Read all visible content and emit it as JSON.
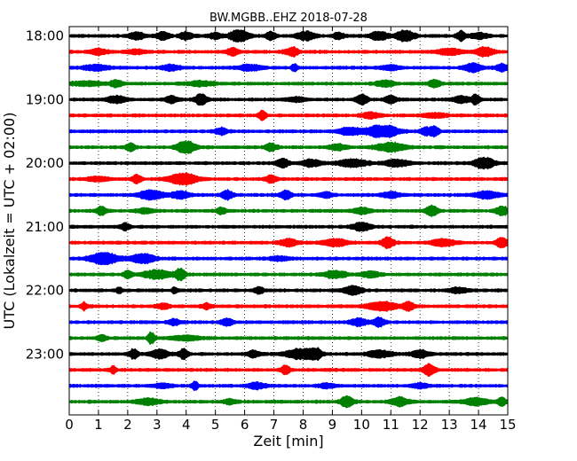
{
  "chart_data": {
    "type": "line",
    "title": "BW.MGBB..EHZ 2018-07-28",
    "xlabel": "Zeit  [min]",
    "ylabel": "UTC (Lokalzeit = UTC + 02:00)",
    "xlim": [
      0,
      15
    ],
    "x_ticks": [
      "0",
      "1",
      "2",
      "3",
      "4",
      "5",
      "6",
      "7",
      "8",
      "9",
      "10",
      "11",
      "12",
      "13",
      "14",
      "15"
    ],
    "y_tick_labels": [
      "18:00",
      "19:00",
      "20:00",
      "21:00",
      "22:00",
      "23:00"
    ],
    "grid": "vertical dotted",
    "trace_minutes": 15,
    "trace_colors": [
      "#000000",
      "#ff0000",
      "#0000ff",
      "#008000"
    ],
    "series": [
      {
        "start": "18:00",
        "bursts": [
          [
            2.3,
            0.25,
            0.5
          ],
          [
            3.2,
            0.2,
            0.6
          ],
          [
            4.0,
            0.25,
            0.5
          ],
          [
            5.0,
            0.2,
            0.4
          ],
          [
            5.8,
            0.3,
            1.0
          ],
          [
            6.9,
            0.2,
            0.5
          ],
          [
            8.1,
            0.3,
            0.6
          ],
          [
            9.2,
            0.2,
            0.4
          ],
          [
            10.6,
            0.3,
            0.6
          ],
          [
            11.5,
            0.3,
            0.8
          ],
          [
            13.4,
            0.15,
            0.7
          ],
          [
            14.0,
            0.3,
            0.4
          ]
        ]
      },
      {
        "start": "18:15",
        "bursts": [
          [
            1.0,
            0.3,
            0.4
          ],
          [
            2.3,
            0.3,
            0.3
          ],
          [
            5.6,
            0.2,
            0.5
          ],
          [
            7.5,
            0.2,
            0.3
          ],
          [
            7.7,
            0.15,
            0.5
          ],
          [
            13.0,
            0.4,
            0.4
          ],
          [
            14.2,
            0.3,
            0.6
          ]
        ]
      },
      {
        "start": "18:30",
        "bursts": [
          [
            0.9,
            0.4,
            0.4
          ],
          [
            3.5,
            0.3,
            0.4
          ],
          [
            6.2,
            0.4,
            0.4
          ],
          [
            7.7,
            0.1,
            0.5
          ],
          [
            11.0,
            0.3,
            0.3
          ],
          [
            13.8,
            0.3,
            0.6
          ],
          [
            14.8,
            0.2,
            0.5
          ]
        ]
      },
      {
        "start": "18:45",
        "bursts": [
          [
            0.6,
            0.5,
            0.3
          ],
          [
            1.6,
            0.2,
            0.5
          ],
          [
            4.5,
            0.5,
            0.3
          ],
          [
            10.8,
            0.3,
            0.4
          ],
          [
            12.5,
            0.2,
            0.5
          ]
        ]
      },
      {
        "start": "19:00",
        "bursts": [
          [
            1.6,
            0.3,
            0.5
          ],
          [
            3.5,
            0.2,
            0.5
          ],
          [
            4.5,
            0.2,
            0.8
          ],
          [
            7.8,
            0.3,
            0.3
          ],
          [
            10.0,
            0.2,
            0.7
          ],
          [
            11.0,
            0.2,
            0.5
          ],
          [
            13.4,
            0.25,
            0.5
          ],
          [
            13.9,
            0.15,
            0.7
          ]
        ]
      },
      {
        "start": "19:15",
        "bursts": [
          [
            6.6,
            0.12,
            0.8
          ],
          [
            10.3,
            0.3,
            0.4
          ],
          [
            12.5,
            0.4,
            0.3
          ]
        ]
      },
      {
        "start": "19:30",
        "bursts": [
          [
            5.2,
            0.2,
            0.5
          ],
          [
            9.6,
            0.4,
            0.5
          ],
          [
            10.7,
            0.5,
            1.0
          ],
          [
            12.2,
            0.2,
            0.5
          ],
          [
            12.5,
            0.15,
            0.7
          ]
        ]
      },
      {
        "start": "19:45",
        "bursts": [
          [
            2.1,
            0.15,
            0.6
          ],
          [
            4.0,
            0.3,
            1.0
          ],
          [
            6.9,
            0.2,
            0.5
          ],
          [
            9.2,
            0.3,
            0.4
          ],
          [
            11.0,
            0.5,
            0.6
          ]
        ]
      },
      {
        "start": "20:00",
        "bursts": [
          [
            7.3,
            0.2,
            0.6
          ],
          [
            8.3,
            0.3,
            0.5
          ],
          [
            9.7,
            0.5,
            0.5
          ],
          [
            11.2,
            0.4,
            0.5
          ],
          [
            14.2,
            0.3,
            1.0
          ]
        ]
      },
      {
        "start": "20:15",
        "bursts": [
          [
            1.0,
            0.4,
            0.3
          ],
          [
            2.3,
            0.15,
            0.6
          ],
          [
            3.9,
            0.45,
            0.9
          ],
          [
            6.9,
            0.2,
            0.5
          ]
        ]
      },
      {
        "start": "20:30",
        "bursts": [
          [
            2.8,
            0.4,
            0.7
          ],
          [
            3.8,
            0.3,
            0.5
          ],
          [
            5.4,
            0.2,
            0.6
          ],
          [
            7.4,
            0.2,
            0.6
          ],
          [
            8.8,
            0.2,
            0.4
          ],
          [
            11.0,
            0.3,
            0.4
          ],
          [
            14.3,
            0.4,
            0.5
          ]
        ]
      },
      {
        "start": "20:45",
        "bursts": [
          [
            1.1,
            0.15,
            0.6
          ],
          [
            2.6,
            0.3,
            0.3
          ],
          [
            5.2,
            0.15,
            0.5
          ],
          [
            10.0,
            0.3,
            0.4
          ],
          [
            12.4,
            0.2,
            0.7
          ],
          [
            14.8,
            0.2,
            0.7
          ]
        ]
      },
      {
        "start": "21:00",
        "bursts": [
          [
            1.9,
            0.15,
            0.5
          ],
          [
            10.0,
            0.3,
            0.6
          ]
        ]
      },
      {
        "start": "21:15",
        "bursts": [
          [
            7.5,
            0.3,
            0.5
          ],
          [
            9.1,
            0.4,
            0.5
          ],
          [
            10.9,
            0.2,
            0.8
          ],
          [
            12.8,
            0.4,
            0.5
          ],
          [
            14.8,
            0.2,
            0.7
          ]
        ]
      },
      {
        "start": "21:30",
        "bursts": [
          [
            1.2,
            0.5,
            0.8
          ],
          [
            2.5,
            0.4,
            0.7
          ],
          [
            7.2,
            0.3,
            0.3
          ]
        ]
      },
      {
        "start": "21:45",
        "bursts": [
          [
            2.0,
            0.15,
            0.5
          ],
          [
            3.0,
            0.5,
            0.6
          ],
          [
            3.8,
            0.15,
            0.9
          ],
          [
            9.1,
            0.4,
            0.5
          ],
          [
            10.3,
            0.3,
            0.4
          ]
        ]
      },
      {
        "start": "22:00",
        "bursts": [
          [
            1.7,
            0.1,
            0.4
          ],
          [
            3.6,
            0.1,
            0.4
          ],
          [
            6.5,
            0.15,
            0.5
          ],
          [
            9.7,
            0.3,
            0.6
          ],
          [
            13.3,
            0.3,
            0.4
          ]
        ]
      },
      {
        "start": "22:15",
        "bursts": [
          [
            0.5,
            0.1,
            0.5
          ],
          [
            3.2,
            0.2,
            0.4
          ],
          [
            4.7,
            0.15,
            0.4
          ],
          [
            10.7,
            0.5,
            0.6
          ],
          [
            11.6,
            0.2,
            0.6
          ]
        ]
      },
      {
        "start": "22:30",
        "bursts": [
          [
            3.6,
            0.2,
            0.4
          ],
          [
            5.4,
            0.2,
            0.5
          ],
          [
            9.9,
            0.3,
            0.5
          ],
          [
            10.6,
            0.2,
            0.6
          ]
        ]
      },
      {
        "start": "22:45",
        "bursts": [
          [
            1.1,
            0.15,
            0.5
          ],
          [
            2.8,
            0.12,
            0.8
          ],
          [
            4.0,
            0.5,
            0.3
          ]
        ]
      },
      {
        "start": "23:00",
        "bursts": [
          [
            2.2,
            0.15,
            0.7
          ],
          [
            3.1,
            0.3,
            0.6
          ],
          [
            3.9,
            0.15,
            0.7
          ],
          [
            6.3,
            0.2,
            0.5
          ],
          [
            7.9,
            0.5,
            0.7
          ],
          [
            8.4,
            0.2,
            0.9
          ],
          [
            10.6,
            0.4,
            0.5
          ],
          [
            12.0,
            0.3,
            0.5
          ]
        ]
      },
      {
        "start": "23:15",
        "bursts": [
          [
            1.5,
            0.1,
            0.5
          ],
          [
            7.4,
            0.15,
            0.6
          ],
          [
            12.3,
            0.2,
            0.8
          ]
        ]
      },
      {
        "start": "23:30",
        "bursts": [
          [
            3.2,
            0.3,
            0.3
          ],
          [
            4.3,
            0.1,
            0.6
          ],
          [
            6.4,
            0.3,
            0.4
          ],
          [
            8.8,
            0.3,
            0.3
          ],
          [
            12.0,
            0.3,
            0.3
          ]
        ]
      },
      {
        "start": "23:45",
        "bursts": [
          [
            2.7,
            0.4,
            0.4
          ],
          [
            5.5,
            0.2,
            0.4
          ],
          [
            9.5,
            0.2,
            0.9
          ],
          [
            11.3,
            0.3,
            0.6
          ],
          [
            13.9,
            0.4,
            0.5
          ],
          [
            14.8,
            0.15,
            0.6
          ]
        ]
      }
    ]
  }
}
